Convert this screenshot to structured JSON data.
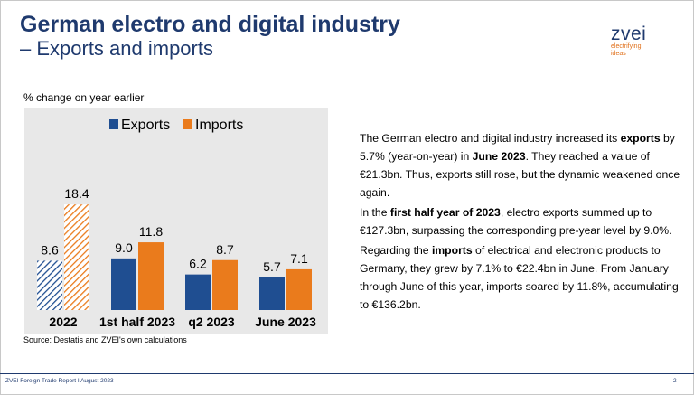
{
  "slide": {
    "title_line1": "German electro and digital industry",
    "title_line2": "– Exports and imports",
    "source": "Source: Destatis and ZVEI's own calculations",
    "footer": "ZVEI Foreign Trade Report I August 2023",
    "page_number": "2"
  },
  "logo": {
    "word": "zvei",
    "tagline_1": "electrifying",
    "tagline_2": "ideas"
  },
  "colors": {
    "exports": "#1f4e91",
    "imports": "#ea7b1c",
    "title": "#1f3a6e",
    "chart_background": "#e8e8e8"
  },
  "chart_data": {
    "type": "bar",
    "unit_label": "% change on year earlier",
    "categories": [
      "2022",
      "1st half 2023",
      "q2 2023",
      "June 2023"
    ],
    "series": [
      {
        "name": "Exports",
        "values": [
          8.6,
          9.0,
          6.2,
          5.7
        ]
      },
      {
        "name": "Imports",
        "values": [
          18.4,
          11.8,
          8.7,
          7.1
        ]
      }
    ],
    "data_labels": [
      [
        "8.6",
        "9.0",
        "6.2",
        "5.7"
      ],
      [
        "18.4",
        "11.8",
        "8.7",
        "7.1"
      ]
    ],
    "hatched_categories": [
      "2022"
    ],
    "legend_position": "top",
    "grid": false
  },
  "text": {
    "p1": [
      {
        "t": "The German electro and digital industry increased its "
      },
      {
        "t": "exports",
        "b": true
      },
      {
        "t": " by 5.7% (year-on-year) in "
      },
      {
        "t": "June",
        "b": true
      },
      {
        "t": " "
      },
      {
        "t": "2023",
        "b": true
      },
      {
        "t": ". They reached a value of €21.3bn. Thus, exports still rose, but the dynamic weakened once again."
      }
    ],
    "p2": [
      {
        "t": "In the "
      },
      {
        "t": "first half year of 2023",
        "b": true
      },
      {
        "t": ", electro exports summed up to €127.3bn, surpassing the corresponding pre-year level by 9.0%."
      }
    ],
    "p3": [
      {
        "t": "Regarding the "
      },
      {
        "t": "imports",
        "b": true
      },
      {
        "t": " of electrical and electronic products to Germany, they grew by 7.1% to €22.4bn in June. From January through June of this year, imports soared by 11.8%, accumulating to €136.2bn."
      }
    ]
  }
}
